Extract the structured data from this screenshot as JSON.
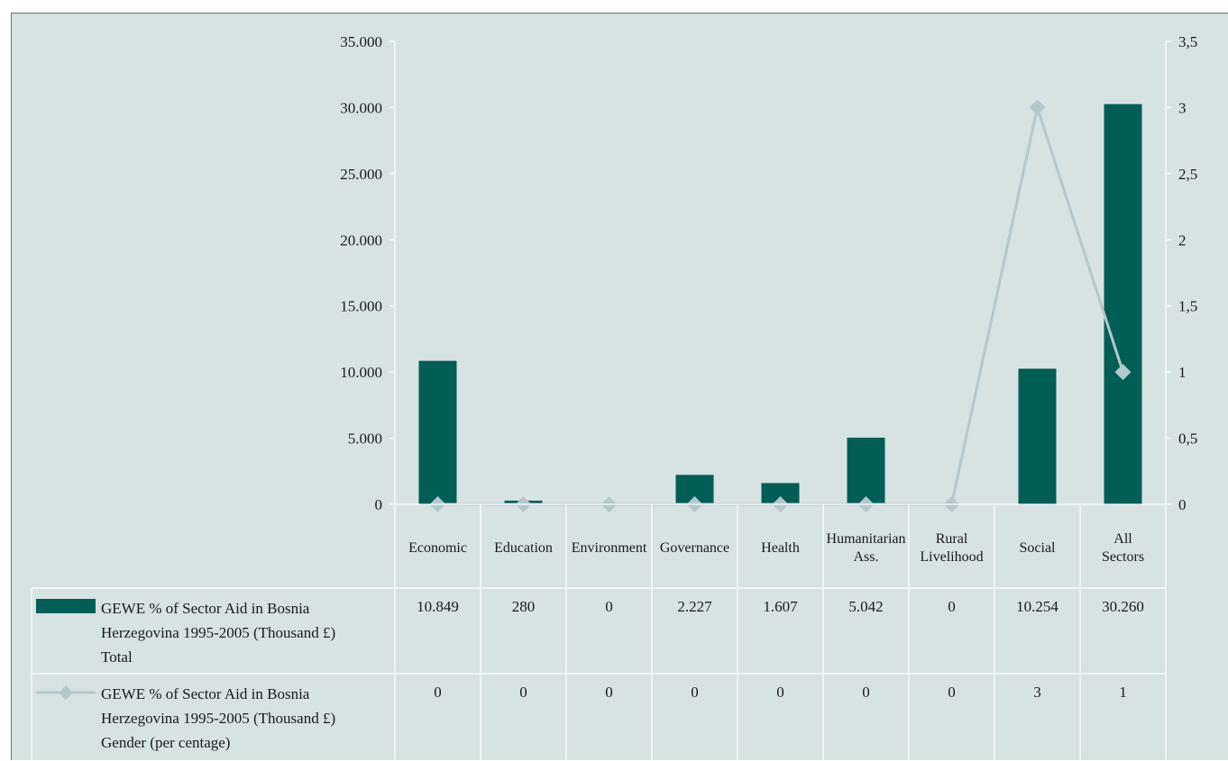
{
  "chart_data": {
    "type": "bar+line",
    "categories": [
      "Economic",
      "Education",
      "Environment",
      "Governance",
      "Health",
      "Humanitarian Ass.",
      "Rural Livelihood",
      "Social",
      "All Sectors"
    ],
    "category_lines": [
      [
        "Economic"
      ],
      [
        "Education"
      ],
      [
        "Environment"
      ],
      [
        "Governance"
      ],
      [
        "Health"
      ],
      [
        "Humanitarian",
        "Ass."
      ],
      [
        "Rural",
        "Livelihood"
      ],
      [
        "Social"
      ],
      [
        "All",
        "Sectors"
      ]
    ],
    "series": [
      {
        "name": "GEWE % of Sector Aid in Bosnia Herzegovina 1995-2005 (Thousand £) Total",
        "name_lines": [
          "GEWE % of Sector Aid in Bosnia",
          "Herzegovina 1995-2005 (Thousand £)",
          "Total"
        ],
        "type": "bar",
        "axis": "left",
        "color": "#005e54",
        "values": [
          10849,
          280,
          0,
          2227,
          1607,
          5042,
          0,
          10254,
          30260
        ],
        "labels": [
          "10.849",
          "280",
          "0",
          "2.227",
          "1.607",
          "5.042",
          "0",
          "10.254",
          "30.260"
        ]
      },
      {
        "name": "GEWE % of Sector Aid in Bosnia Herzegovina 1995-2005 (Thousand £) Gender (per centage)",
        "name_lines": [
          "GEWE % of Sector Aid in Bosnia",
          "Herzegovina 1995-2005 (Thousand £)",
          "Gender (per centage)"
        ],
        "type": "line",
        "axis": "right",
        "color": "#b4c8cb",
        "values": [
          0,
          0,
          0,
          0,
          0,
          0,
          0,
          3,
          1
        ],
        "labels": [
          "0",
          "0",
          "0",
          "0",
          "0",
          "0",
          "0",
          "3",
          "1"
        ]
      }
    ],
    "y_left": {
      "range": [
        0,
        35000
      ],
      "ticks": [
        0,
        5000,
        10000,
        15000,
        20000,
        25000,
        30000,
        35000
      ],
      "tick_labels": [
        "0",
        "5.000",
        "10.000",
        "15.000",
        "20.000",
        "25.000",
        "30.000",
        "35.000"
      ]
    },
    "y_right": {
      "range": [
        0,
        3.5
      ],
      "ticks": [
        0,
        0.5,
        1,
        1.5,
        2,
        2.5,
        3,
        3.5
      ],
      "tick_labels": [
        "0",
        "0,5",
        "1",
        "1,5",
        "2",
        "2,5",
        "3",
        "3,5"
      ]
    },
    "title": "",
    "grid": false,
    "legend": "data-table"
  }
}
